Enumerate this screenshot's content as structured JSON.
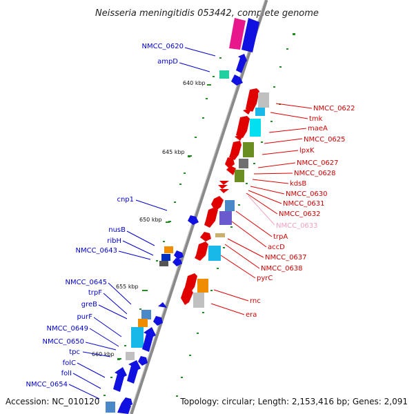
{
  "title": "Neisseria meningitidis 053442, complete genome",
  "footer": {
    "accession": "Accession: NC_010120",
    "summary": "Topology: circular; Length: 2,153,416 bp; Genes: 2,091"
  },
  "colors": {
    "backbone": "#8a8a8a",
    "forward_label": "#0000cc",
    "reverse_label": "#d00000",
    "pseudo_label": "#f2a0c0",
    "tick": "#228b22"
  },
  "ticks": [
    {
      "label": "640 kbp"
    },
    {
      "label": "645 kbp"
    },
    {
      "label": "650 kbp"
    },
    {
      "label": "655 kbp"
    },
    {
      "label": "660 kbp"
    }
  ],
  "left_labels": [
    {
      "name": "NMCC_0620"
    },
    {
      "name": "ampD"
    },
    {
      "name": "cnp1"
    },
    {
      "name": "nusB"
    },
    {
      "name": "ribH"
    },
    {
      "name": "NMCC_0643"
    },
    {
      "name": "NMCC_0645"
    },
    {
      "name": "trpF"
    },
    {
      "name": "greB"
    },
    {
      "name": "purF"
    },
    {
      "name": "NMCC_0649"
    },
    {
      "name": "NMCC_0650"
    },
    {
      "name": "tpc"
    },
    {
      "name": "folC"
    },
    {
      "name": "folI"
    },
    {
      "name": "NMCC_0654"
    }
  ],
  "right_labels": [
    {
      "name": "NMCC_0622"
    },
    {
      "name": "tmk"
    },
    {
      "name": "maeA"
    },
    {
      "name": "NMCC_0625"
    },
    {
      "name": "lpxK"
    },
    {
      "name": "NMCC_0627"
    },
    {
      "name": "NMCC_0628"
    },
    {
      "name": "kdsB"
    },
    {
      "name": "NMCC_0630"
    },
    {
      "name": "NMCC_0631"
    },
    {
      "name": "NMCC_0632"
    },
    {
      "name": "NMCC_0633"
    },
    {
      "name": "trpA"
    },
    {
      "name": "accD"
    },
    {
      "name": "NMCC_0637"
    },
    {
      "name": "NMCC_0638"
    },
    {
      "name": "pyrC"
    },
    {
      "name": "rnc"
    },
    {
      "name": "era"
    }
  ]
}
